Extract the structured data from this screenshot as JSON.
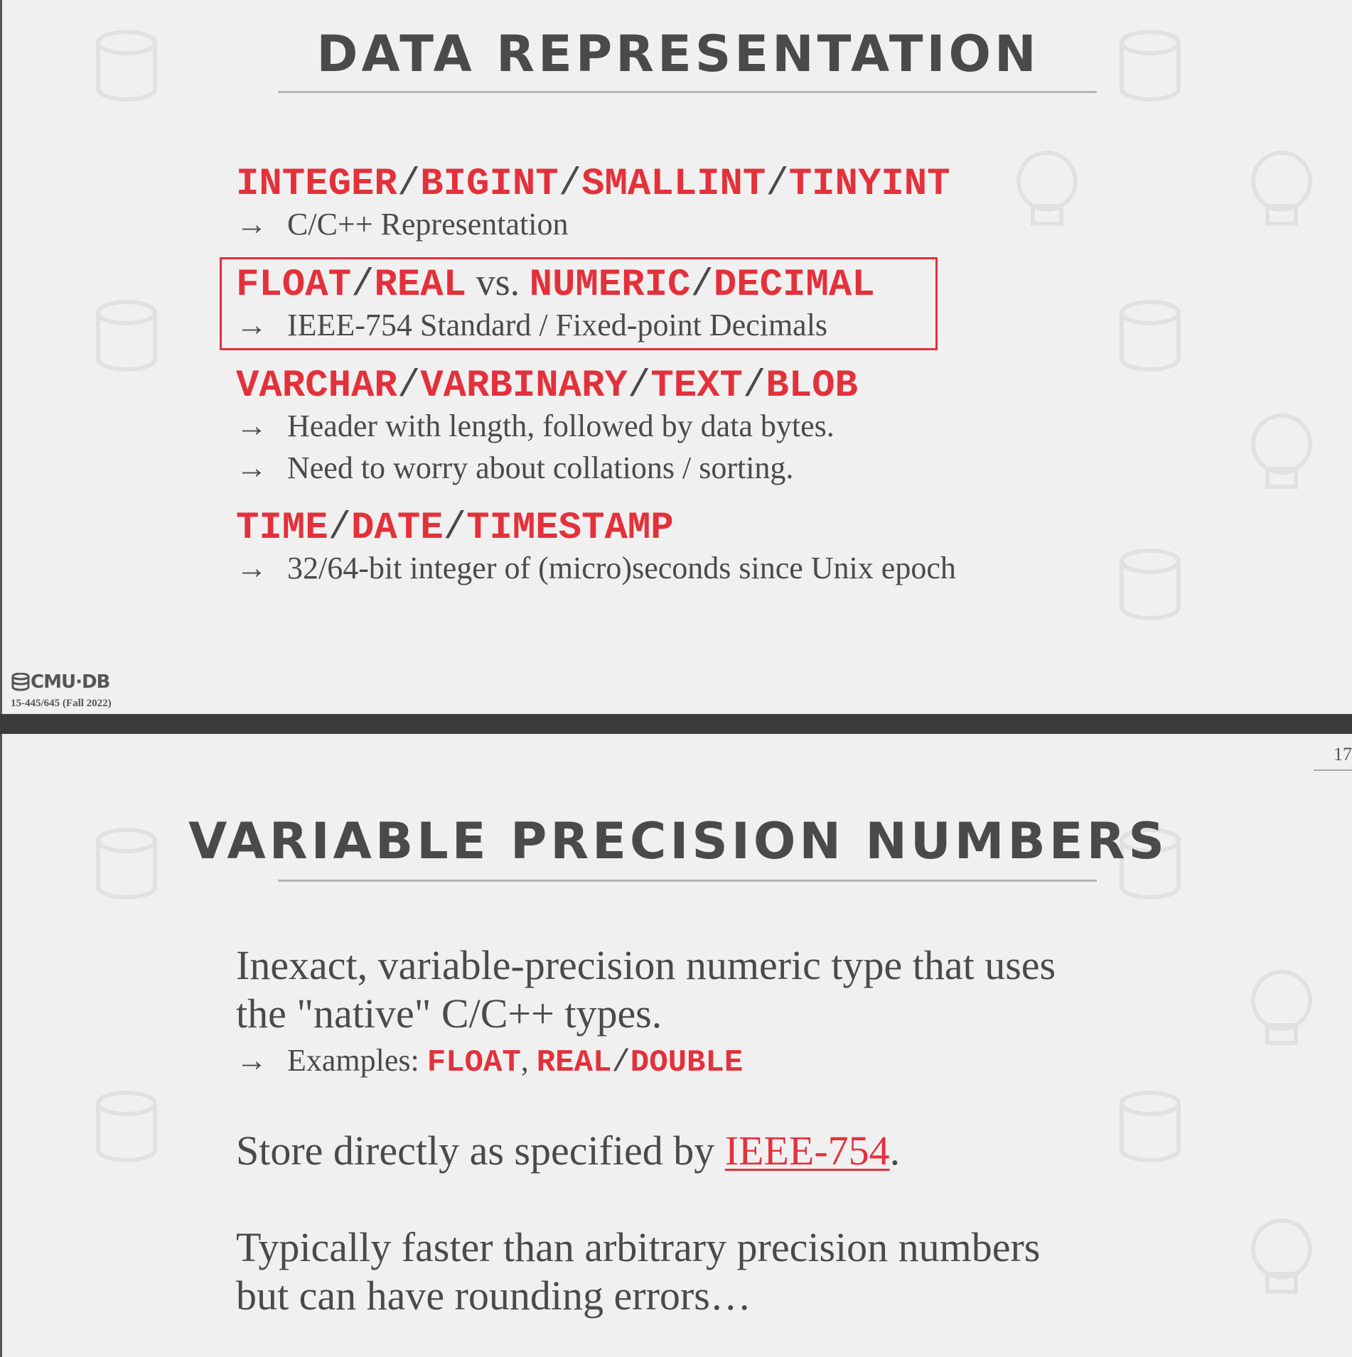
{
  "slide1": {
    "title": "DATA REPRESENTATION",
    "sections": [
      {
        "types": [
          "INTEGER",
          "BIGINT",
          "SMALLINT",
          "TINYINT"
        ],
        "bullets": [
          "C/C++ Representation"
        ]
      },
      {
        "types": [
          "FLOAT",
          "REAL"
        ],
        "vs": "vs.",
        "types2": [
          "NUMERIC",
          "DECIMAL"
        ],
        "bullets": [
          "IEEE-754 Standard / Fixed-point Decimals"
        ]
      },
      {
        "types": [
          "VARCHAR",
          "VARBINARY",
          "TEXT",
          "BLOB"
        ],
        "bullets": [
          "Header with length, followed by data bytes.",
          "Need to worry about collations / sorting."
        ]
      },
      {
        "types": [
          "TIME",
          "DATE",
          "TIMESTAMP"
        ],
        "bullets": [
          "32/64-bit integer of (micro)seconds since Unix epoch"
        ]
      }
    ],
    "separator": "/",
    "arrow": "→",
    "footer": {
      "logo": "CMU·DB",
      "course": "15-445/645 (Fall 2022)"
    }
  },
  "slide2": {
    "page_number": "17",
    "title": "VARIABLE PRECISION NUMBERS",
    "para1": {
      "line1": "Inexact, variable-precision numeric type that uses",
      "line2": "the \"native\" C/C++ types."
    },
    "examples": {
      "prefix": "Examples: ",
      "t1": "FLOAT",
      "comma": ", ",
      "t2": "REAL",
      "slash": "/",
      "t3": "DOUBLE"
    },
    "para2": {
      "prefix": "Store directly as specified by ",
      "link": "IEEE-754",
      "suffix": "."
    },
    "para3": {
      "line1": "Typically faster than arbitrary precision numbers",
      "line2": "but can have rounding errors…"
    }
  },
  "colors": {
    "accent": "#e3313b",
    "text": "#4a4a4a",
    "background": "#f0f0f0"
  }
}
